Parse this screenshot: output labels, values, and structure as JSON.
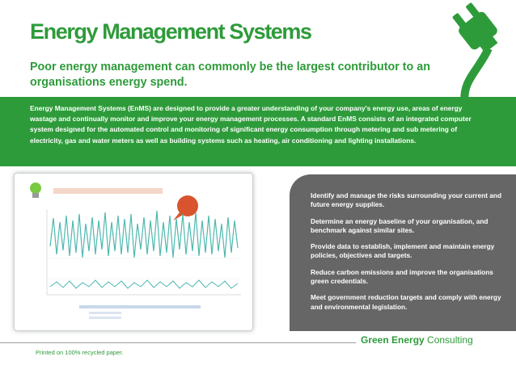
{
  "header": {
    "title": "Energy Management Systems",
    "subtitle": "Poor energy management can commonly be the largest contributor to an organisations energy spend."
  },
  "intro": {
    "text": "Energy Management Systems (EnMS) are designed to provide a greater understanding of your company's energy use, areas of energy wastage and continually monitor and improve your energy management processes. A standard EnMS consists of an integrated computer system designed for the automated control and monitoring of significant energy consumption through metering and sub metering of electricity, gas and water meters as well as building systems such as heating, air conditioning and lighting installations."
  },
  "benefits": [
    "Identify and manage the risks surrounding your current and future energy supplies.",
    "Determine an energy baseline of your organisation, and benchmark against similar sites.",
    "Provide data to establish, implement and maintain energy policies, objectives and targets.",
    "Reduce carbon emissions and improve the organisations green credentials.",
    "Meet government reduction targets and comply with energy and environmental legislation."
  ],
  "footer": {
    "brand_bold": "Green Energy",
    "brand_rest": " Consulting",
    "printed_note": "Printed on 100% recycled paper."
  },
  "colors": {
    "brand_green": "#2e9b3a",
    "panel_grey": "#666666",
    "chart_line": "#4fb8b0"
  },
  "icons": {
    "plug": "electric-plug-icon",
    "bulb": "lightbulb-icon"
  }
}
